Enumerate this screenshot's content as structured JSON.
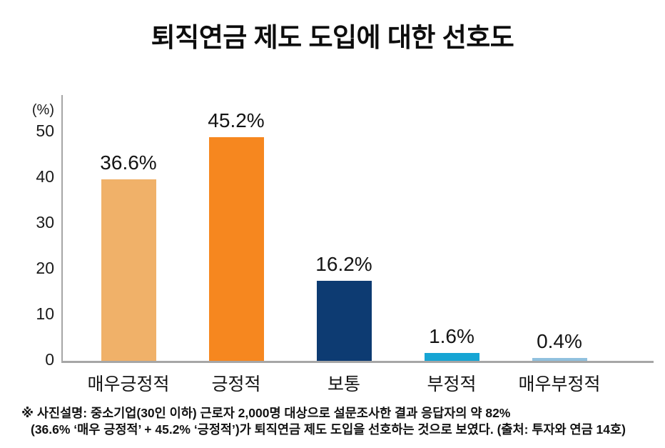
{
  "title": "퇴직연금 제도 도입에 대한 선호도",
  "caption": {
    "line1": "※ 사진설명: 중소기업(30인 이하) 근로자 2,000명 대상으로 설문조사한 결과 응답자의 약 82%",
    "line2": "(36.6% ‘매우 긍정적’ + 45.2% ‘긍정적’)가 퇴직연금 제도 도입을 선호하는 것으로 보였다. (출처: 투자와 연금 14호)"
  },
  "chart_data": {
    "type": "bar",
    "title": "퇴직연금 제도 도입에 대한 선호도",
    "categories": [
      "매우긍정적",
      "긍정적",
      "보통",
      "부정적",
      "매우부정적"
    ],
    "values": [
      36.6,
      45.2,
      16.2,
      1.6,
      0.4
    ],
    "value_labels": [
      "36.6%",
      "45.2%",
      "16.2%",
      "1.6%",
      "0.4%"
    ],
    "bar_colors": [
      "#F0B169",
      "#F6871F",
      "#0D3B72",
      "#16A5D4",
      "#90C1DE"
    ],
    "xlabel": "",
    "ylabel": "(%)",
    "ylim": [
      0,
      50
    ],
    "y_ticks": [
      "50",
      "40",
      "30",
      "20",
      "10",
      "0"
    ],
    "grid": false,
    "legend": "none",
    "axis_color": "#A6A6A6",
    "background": "#FFFFFF",
    "text_color": "#1A1A1A"
  }
}
